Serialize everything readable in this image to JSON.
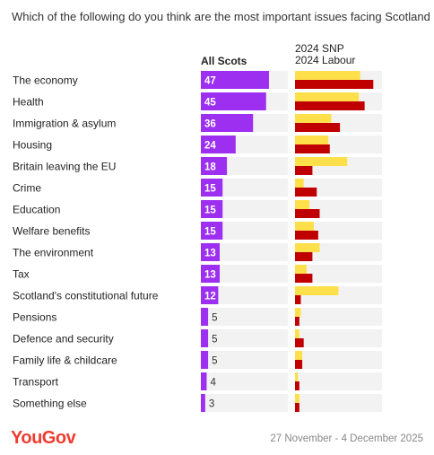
{
  "title": "Which of the following do you think are the most important issues facing Scotland",
  "footer": {
    "brand": "YouGov",
    "date_range": "27 November - 4 December 2025"
  },
  "chart_data": {
    "type": "bar",
    "title": "Which of the following do you think are the most important issues facing Scotland",
    "categories": [
      "The economy",
      "Health",
      "Immigration & asylum",
      "Housing",
      "Britain leaving the EU",
      "Crime",
      "Education",
      "Welfare benefits",
      "The environment",
      "Tax",
      "Scotland's constitutional future",
      "Pensions",
      "Defence and security",
      "Family life & childcare",
      "Transport",
      "Something else"
    ],
    "all_scots": {
      "name": "All Scots",
      "values": [
        47,
        45,
        36,
        24,
        18,
        15,
        15,
        15,
        13,
        13,
        12,
        5,
        5,
        5,
        4,
        3
      ],
      "color": "#9d2ff0",
      "xlim": [
        0,
        60
      ]
    },
    "by_vote": {
      "xlim": [
        0,
        60
      ],
      "series": [
        {
          "name": "2024 SNP",
          "color": "#ffe04a",
          "values": [
            45,
            44,
            25,
            23,
            36,
            6,
            10,
            13,
            17,
            8,
            30,
            4,
            3,
            5,
            2,
            3
          ]
        },
        {
          "name": "2024 Labour",
          "color": "#c00000",
          "values": [
            54,
            48,
            31,
            24,
            12,
            15,
            17,
            16,
            12,
            12,
            4,
            3,
            6,
            5,
            3,
            3
          ]
        }
      ]
    }
  },
  "colors": {
    "track": "#f2f2f2",
    "label_inside": "#ffffff",
    "label_outside": "#333333"
  }
}
